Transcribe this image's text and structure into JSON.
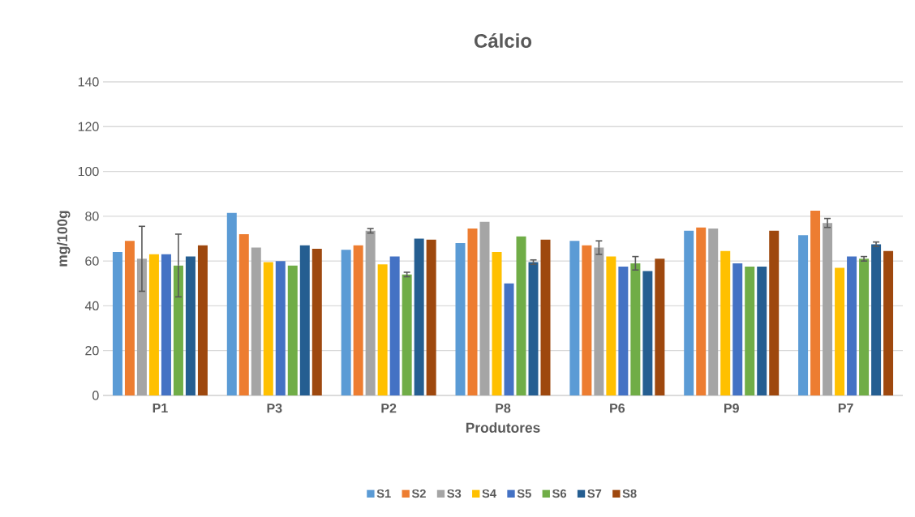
{
  "chart_data": {
    "type": "bar",
    "title": "Cálcio",
    "xlabel": "Produtores",
    "ylabel": "mg/100g",
    "categories": [
      "P1",
      "P3",
      "P2",
      "P8",
      "P6",
      "P9",
      "P7"
    ],
    "series": [
      {
        "name": "S1",
        "color": "#5b9bd5",
        "values": [
          64,
          81.5,
          65,
          68,
          69,
          73.5,
          71.5
        ]
      },
      {
        "name": "S2",
        "color": "#ed7d31",
        "values": [
          69,
          72,
          67,
          74.5,
          67,
          75,
          82.5
        ]
      },
      {
        "name": "S3",
        "color": "#a5a5a5",
        "values": [
          61,
          66,
          73.5,
          77.5,
          66,
          74.5,
          77
        ],
        "errors": [
          14.5,
          null,
          1,
          null,
          3,
          null,
          2
        ]
      },
      {
        "name": "S4",
        "color": "#ffc000",
        "values": [
          63,
          59.5,
          58.5,
          64,
          62,
          64.5,
          57
        ]
      },
      {
        "name": "S5",
        "color": "#4472c4",
        "values": [
          63,
          60,
          62,
          50,
          57.5,
          59,
          62
        ]
      },
      {
        "name": "S6",
        "color": "#70ad47",
        "values": [
          58,
          58,
          54,
          71,
          59,
          57.5,
          61
        ],
        "errors": [
          14,
          null,
          1,
          null,
          3,
          null,
          1
        ]
      },
      {
        "name": "S7",
        "color": "#255e91",
        "values": [
          62,
          67,
          70,
          59.5,
          55.5,
          57.5,
          67.5
        ],
        "errors": [
          null,
          null,
          null,
          1,
          null,
          null,
          1
        ]
      },
      {
        "name": "S8",
        "color": "#9e480e",
        "values": [
          67,
          65.5,
          69.5,
          69.5,
          61,
          73.5,
          64.5
        ]
      }
    ],
    "ylim": [
      0,
      140
    ],
    "yticks": [
      0,
      20,
      40,
      60,
      80,
      100,
      120,
      140
    ],
    "grid": "y",
    "legend": "bottom"
  }
}
